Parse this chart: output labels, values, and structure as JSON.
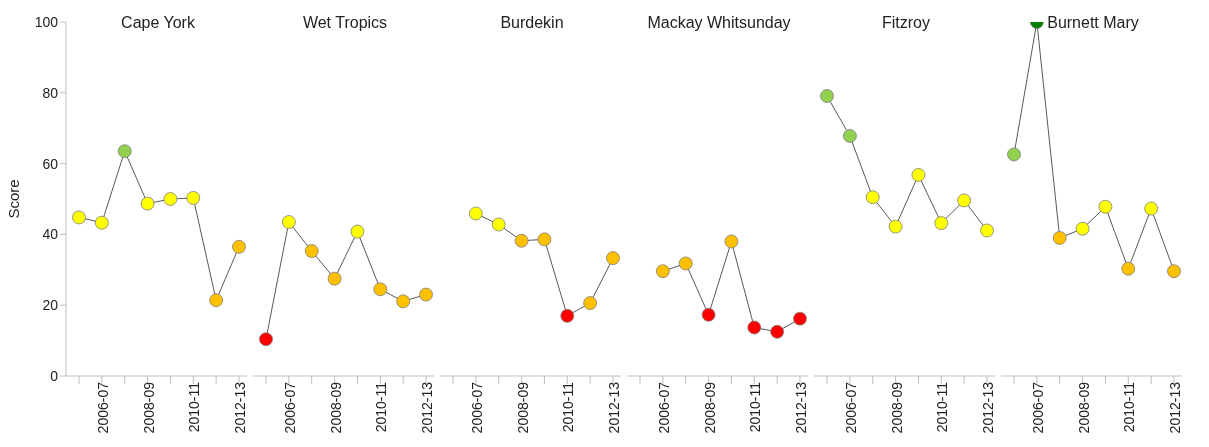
{
  "chart_data": [
    {
      "type": "line",
      "title": "Cape York",
      "ylabel": "Score",
      "categories": [
        null,
        "2006-07",
        null,
        "2008-09",
        null,
        "2010-11",
        null,
        "2012-13"
      ],
      "values": [
        44.8,
        43.3,
        63.5,
        48.7,
        50.0,
        50.3,
        21.4,
        36.5
      ],
      "color": "#595959",
      "colors": [
        "#ffff00",
        "#ffff00",
        "#92d050",
        "#ffff00",
        "#ffff00",
        "#ffff00",
        "#ffc000",
        "#ffc000"
      ],
      "marker": "circle",
      "ylim": [
        0,
        100
      ],
      "yticks": [
        0,
        20,
        40,
        60,
        80,
        100
      ]
    },
    {
      "type": "line",
      "title": "Wet Tropics",
      "categories": [
        null,
        "2006-07",
        null,
        "2008-09",
        null,
        "2010-11",
        null,
        "2012-13"
      ],
      "values": [
        10.4,
        43.5,
        35.3,
        27.5,
        40.8,
        24.5,
        21.1,
        23.0
      ],
      "color": "#595959",
      "colors": [
        "#ff0000",
        "#ffff00",
        "#ffc000",
        "#ffc000",
        "#ffff00",
        "#ffc000",
        "#ffc000",
        "#ffc000"
      ],
      "marker": "circle",
      "ylim": [
        0,
        100
      ],
      "yticks": [
        0,
        20,
        40,
        60,
        80,
        100
      ],
      "tick_labels": "x"
    },
    {
      "type": "line",
      "title": "Burdekin",
      "categories": [
        null,
        "2006-07",
        null,
        "2008-09",
        null,
        "2010-11",
        null,
        "2012-13"
      ],
      "values": [
        null,
        45.9,
        42.8,
        38.2,
        38.6,
        17.0,
        20.6,
        33.3
      ],
      "color": "#595959",
      "colors": [
        null,
        "#ffff00",
        "#ffff00",
        "#ffc000",
        "#ffc000",
        "#ff0000",
        "#ffc000",
        "#ffc000"
      ],
      "marker": "circle",
      "ylim": [
        0,
        100
      ],
      "yticks": [
        0,
        20,
        40,
        60,
        80,
        100
      ],
      "tick_labels": "x"
    },
    {
      "type": "line",
      "title": "Mackay Whitsunday",
      "categories": [
        null,
        "2006-07",
        null,
        "2008-09",
        null,
        "2010-11",
        null,
        "2012-13"
      ],
      "values": [
        null,
        29.6,
        31.8,
        17.3,
        38.0,
        13.7,
        12.5,
        16.2
      ],
      "color": "#595959",
      "colors": [
        null,
        "#ffc000",
        "#ffc000",
        "#ff0000",
        "#ffc000",
        "#ff0000",
        "#ff0000",
        "#ff0000"
      ],
      "marker": "circle",
      "ylim": [
        0,
        100
      ],
      "yticks": [
        0,
        20,
        40,
        60,
        80,
        100
      ],
      "tick_labels": "x"
    },
    {
      "type": "line",
      "title": "Fitzroy",
      "categories": [
        null,
        "2006-07",
        null,
        "2008-09",
        null,
        "2010-11",
        null,
        "2012-13"
      ],
      "values": [
        79.1,
        67.8,
        50.5,
        42.2,
        56.8,
        43.2,
        49.6,
        41.1
      ],
      "color": "#595959",
      "colors": [
        "#92d050",
        "#92d050",
        "#ffff00",
        "#ffff00",
        "#ffff00",
        "#ffff00",
        "#ffff00",
        "#ffff00"
      ],
      "marker": "circle",
      "ylim": [
        0,
        100
      ],
      "yticks": [
        0,
        20,
        40,
        60,
        80,
        100
      ],
      "tick_labels": "x"
    },
    {
      "type": "line",
      "title": "Burnett Mary",
      "categories": [
        null,
        "2006-07",
        null,
        "2008-09",
        null,
        "2010-11",
        null,
        "2012-13"
      ],
      "values": [
        62.6,
        100,
        39.0,
        41.6,
        47.8,
        30.3,
        47.3,
        29.6
      ],
      "color": "#595959",
      "colors": [
        "#92d050",
        "#008000",
        "#ffc000",
        "#ffff00",
        "#ffff00",
        "#ffc000",
        "#ffff00",
        "#ffc000"
      ],
      "marker": "circle",
      "ylim": [
        0,
        100
      ],
      "yticks": [
        0,
        20,
        40,
        60,
        80,
        100
      ],
      "tick_labels": "x"
    }
  ]
}
